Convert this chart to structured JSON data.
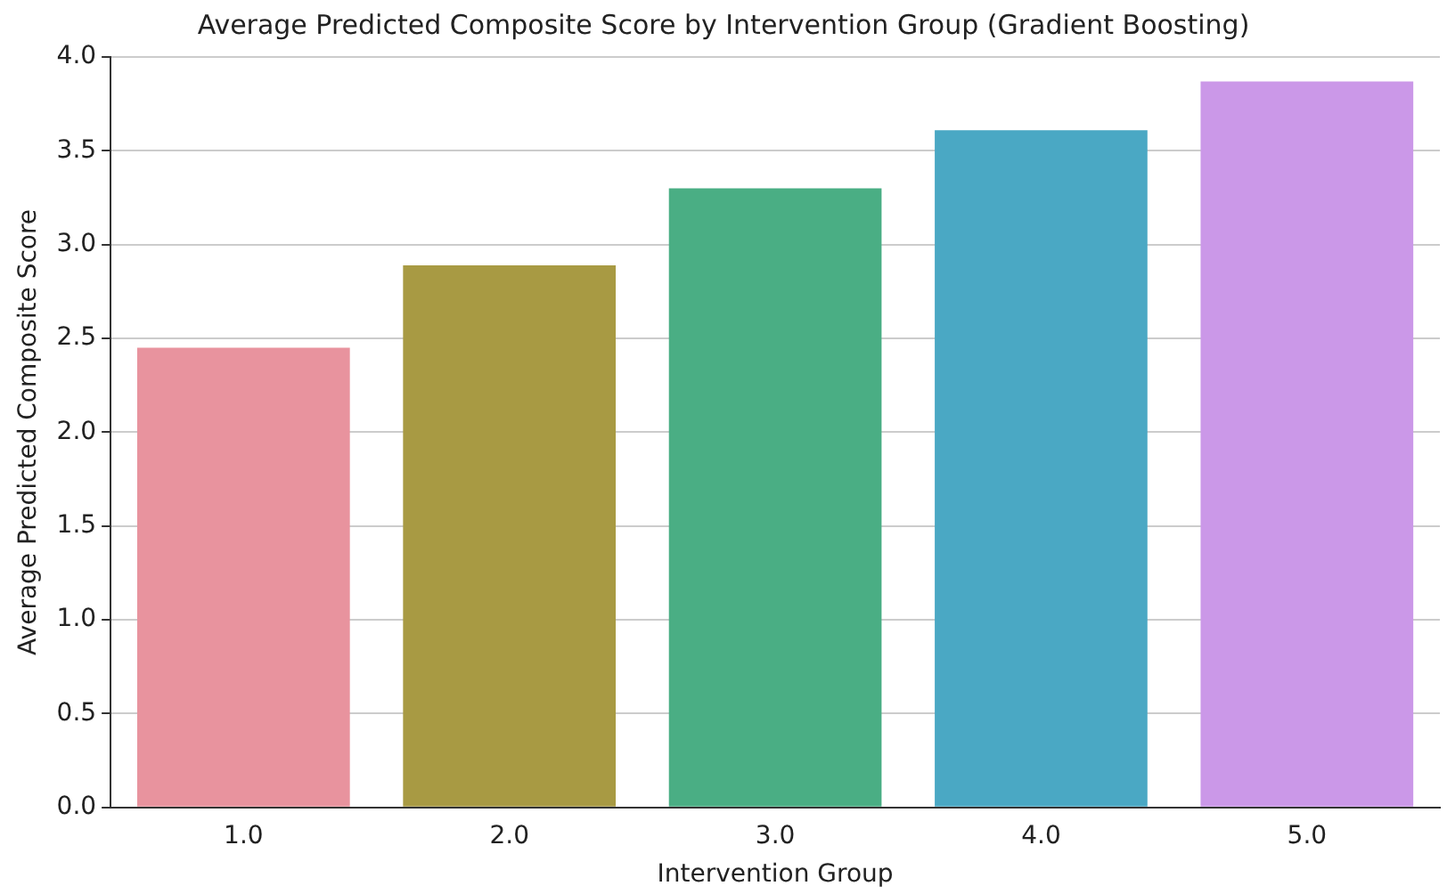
{
  "chart_data": {
    "type": "bar",
    "title": "Average Predicted Composite Score by Intervention Group (Gradient Boosting)",
    "xlabel": "Intervention Group",
    "ylabel": "Average Predicted Composite Score",
    "categories": [
      "1.0",
      "2.0",
      "3.0",
      "4.0",
      "5.0"
    ],
    "values": [
      2.45,
      2.89,
      3.3,
      3.61,
      3.87
    ],
    "colors": [
      "#e8939e",
      "#a89a43",
      "#4aae84",
      "#4aa8c4",
      "#cb98e8"
    ],
    "ylim": [
      0,
      4.0
    ],
    "yticks": [
      {
        "value": 0,
        "label": "0.0"
      },
      {
        "value": 0.5,
        "label": "0.5"
      },
      {
        "value": 1,
        "label": "1.0"
      },
      {
        "value": 1.5,
        "label": "1.5"
      },
      {
        "value": 2,
        "label": "2.0"
      },
      {
        "value": 2.5,
        "label": "2.5"
      },
      {
        "value": 3,
        "label": "3.0"
      },
      {
        "value": 3.5,
        "label": "3.5"
      },
      {
        "value": 4,
        "label": "4.0"
      }
    ],
    "grid": "y"
  }
}
